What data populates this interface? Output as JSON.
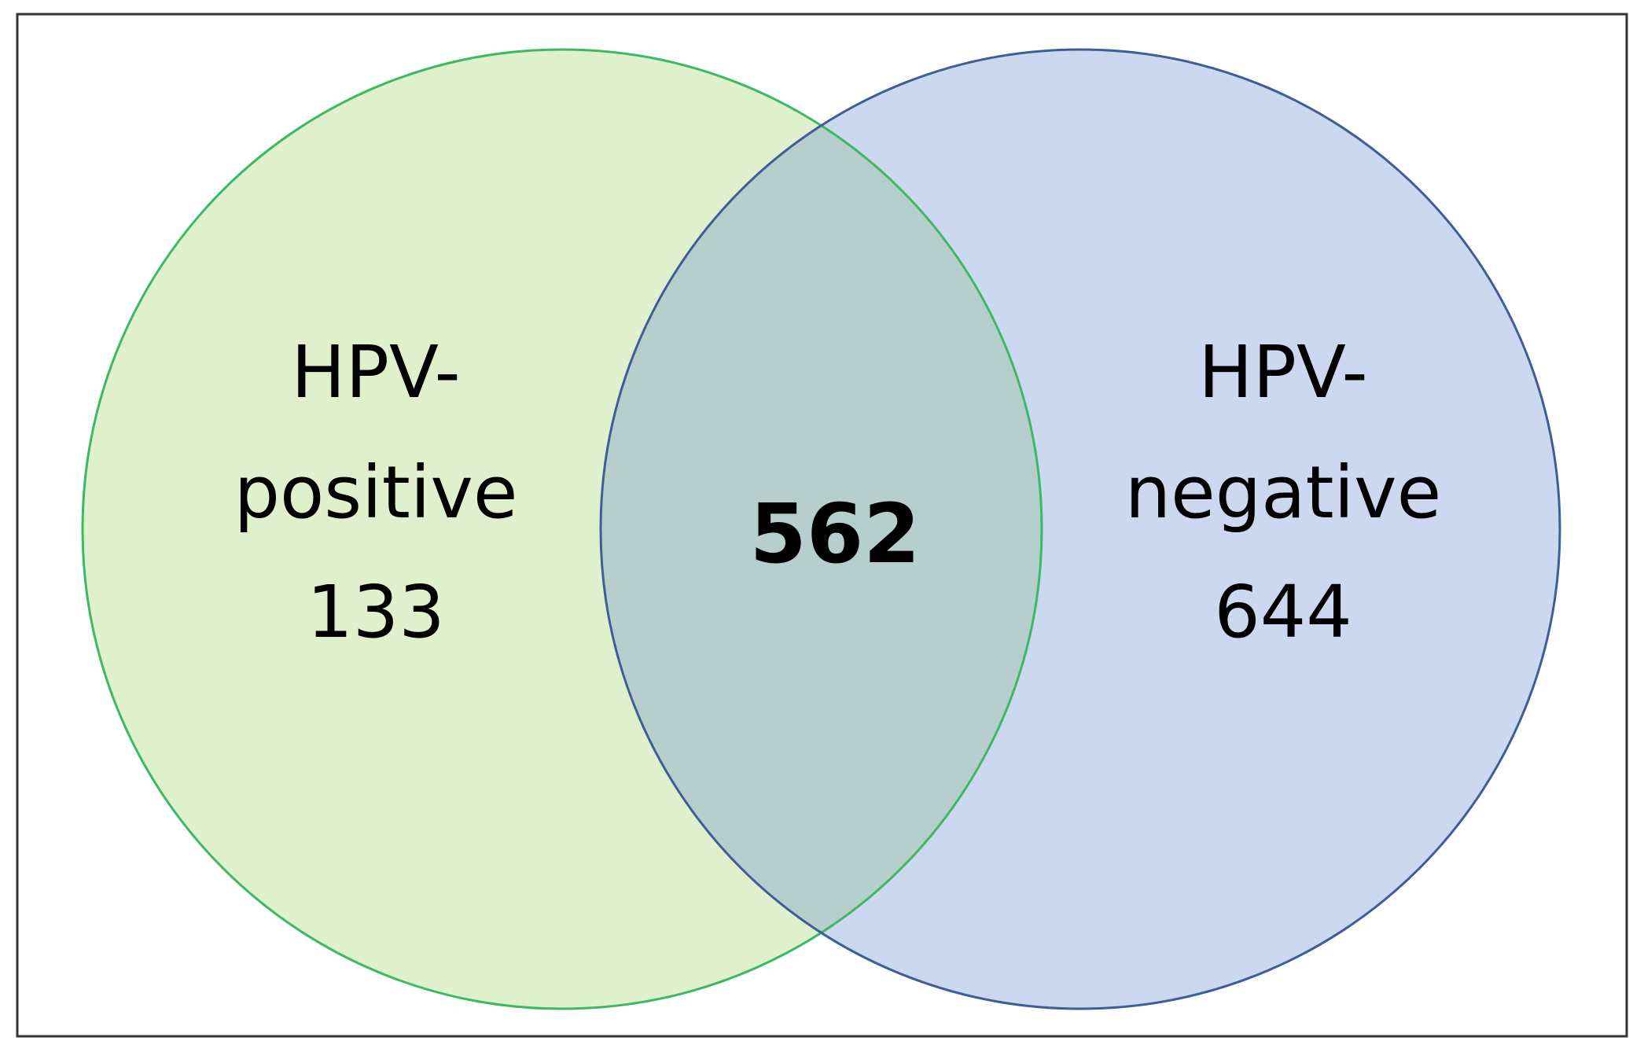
{
  "sets": {
    "left": {
      "line1": "HPV-",
      "line2": "positive",
      "count": "133",
      "fill": "#dff0cc",
      "stroke": "#3cb963"
    },
    "right": {
      "line1": "HPV-",
      "line2": "negative",
      "count": "644",
      "fill": "#cbd8f0",
      "stroke": "#3f5e99"
    }
  },
  "overlap": {
    "count": "562",
    "fill": "#b7cfcc"
  },
  "frame": {
    "stroke": "#333333"
  }
}
